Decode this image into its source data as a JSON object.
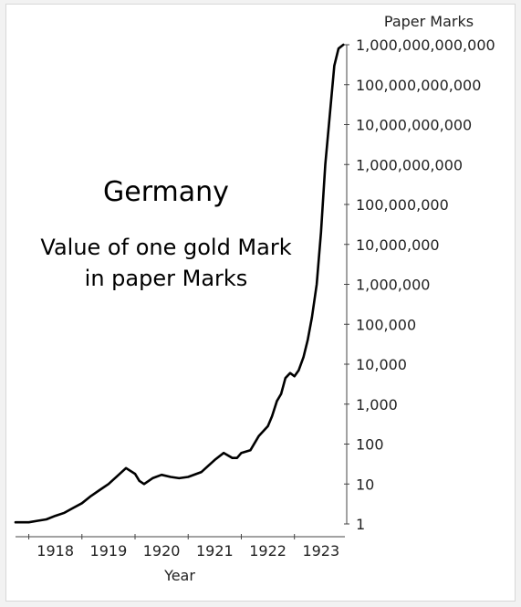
{
  "chart_data": {
    "type": "line",
    "title": "Germany",
    "subtitle": [
      "Value of one gold Mark",
      "in paper Marks"
    ],
    "xlabel": "Year",
    "ylabel": "Paper Marks",
    "y_scale": "log10",
    "ylim": [
      1,
      1000000000000
    ],
    "xlim": [
      1917.75,
      1923.95
    ],
    "x_tick_labels": [
      "1918",
      "1919",
      "1920",
      "1921",
      "1922",
      "1923"
    ],
    "y_tick_labels": [
      "1",
      "10",
      "100",
      "1,000",
      "10,000",
      "100,000",
      "1,000,000",
      "10,000,000",
      "100,000,000",
      "1,000,000,000",
      "10,000,000,000",
      "100,000,000,000",
      "1,000,000,000,000"
    ],
    "grid": false,
    "series": [
      {
        "x": [
          1917.75,
          1918.0,
          1918.17,
          1918.33,
          1918.5,
          1918.67,
          1918.83,
          1919.0,
          1919.17,
          1919.33,
          1919.5,
          1919.67,
          1919.83,
          1920.0,
          1920.08,
          1920.17,
          1920.33,
          1920.5,
          1920.67,
          1920.83,
          1921.0,
          1921.25,
          1921.5,
          1921.67,
          1921.83,
          1921.92,
          1922.0,
          1922.17,
          1922.33,
          1922.5,
          1922.58,
          1922.67,
          1922.75,
          1922.83,
          1922.92,
          1923.0,
          1923.08,
          1923.17,
          1923.25,
          1923.33,
          1923.42,
          1923.5,
          1923.58,
          1923.67,
          1923.75,
          1923.83,
          1923.92
        ],
        "y": [
          1.1,
          1.1,
          1.2,
          1.3,
          1.6,
          1.9,
          2.5,
          3.3,
          5.0,
          7.0,
          10.0,
          16.0,
          25.0,
          18.0,
          12.0,
          10.0,
          14.0,
          17.0,
          15.0,
          14.0,
          15.0,
          20.0,
          40.0,
          60.0,
          45.0,
          45.0,
          60.0,
          70.0,
          160.0,
          280.0,
          500.0,
          1200.0,
          1800.0,
          4500.0,
          6000.0,
          5000.0,
          7000.0,
          15000.0,
          40000.0,
          150000.0,
          1000000.0,
          20000000.0,
          1000000000.0,
          20000000000.0,
          300000000000.0,
          800000000000.0,
          1000000000000.0
        ]
      }
    ],
    "line_color": "#000000"
  }
}
